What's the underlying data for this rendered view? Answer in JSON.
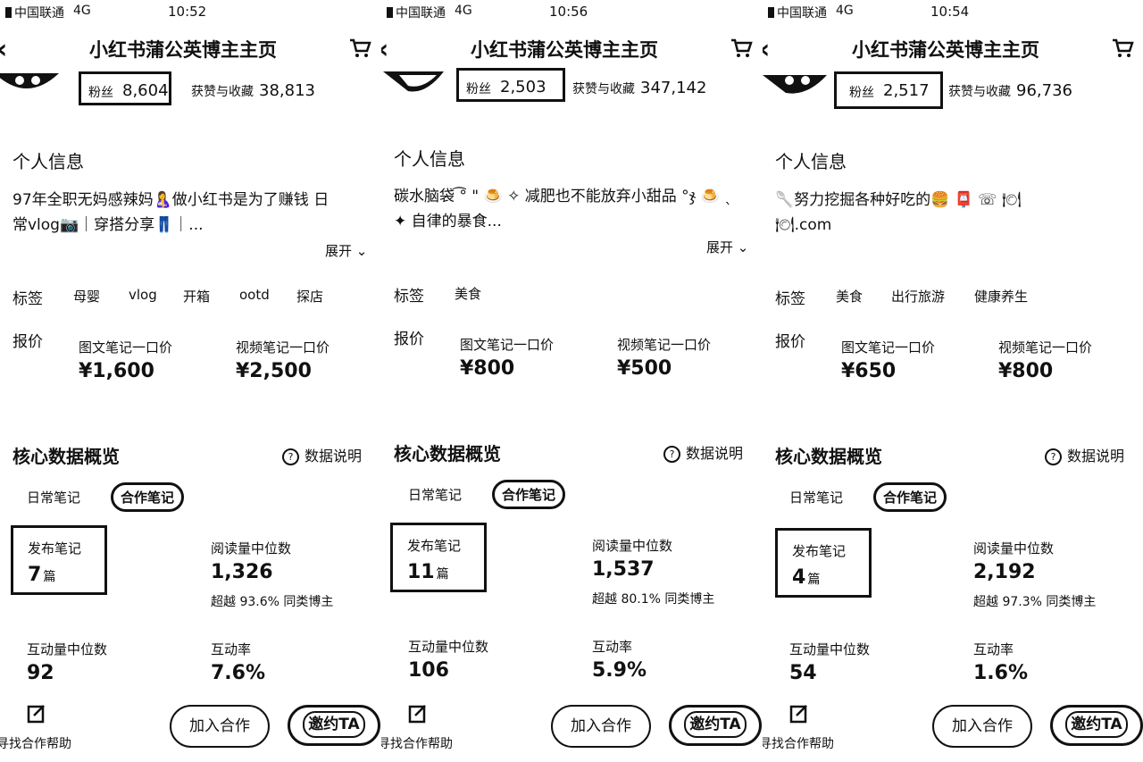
{
  "app_title": "小红书蒲公英博主主页",
  "panels": [
    {
      "status": {
        "carrier": "中国联通",
        "network": "4G",
        "time": "10:52"
      },
      "fans_label": "粉丝",
      "fans_value": "8,604",
      "likes_label": "获赞与收藏",
      "likes_value": "38,813",
      "info_title": "个人信息",
      "bio_line1": "97年全职无妈感辣妈🤱做小红书是为了赚钱 日",
      "bio_line2": "常vlog📷｜穿搭分享👖｜...",
      "expand": "展开 ⌄",
      "tags_label": "标签",
      "tags": [
        "母婴",
        "vlog",
        "开箱",
        "ootd",
        "探店"
      ],
      "price_label": "报价",
      "price_image_label": "图文笔记一口价",
      "price_image_value": "¥1,600",
      "price_video_label": "视频笔记一口价",
      "price_video_value": "¥2,500",
      "core_title": "核心数据概览",
      "help": "数据说明",
      "tab_daily": "日常笔记",
      "tab_coop": "合作笔记",
      "notes_label": "发布笔记",
      "notes_value": "7",
      "notes_unit": "篇",
      "read_label": "阅读量中位数",
      "read_value": "1,326",
      "read_beat": "超越 93.6% 同类博主",
      "interact_label": "互动量中位数",
      "interact_value": "92",
      "rate_label": "互动率",
      "rate_value": "7.6%",
      "help_fab": "寻找合作帮助",
      "join_btn": "加入合作",
      "invite_btn": "邀约TA"
    },
    {
      "status": {
        "carrier": "中国联通",
        "network": "4G",
        "time": "10:56"
      },
      "fans_label": "粉丝",
      "fans_value": "2,503",
      "likes_label": "获赞与收藏",
      "likes_value": "347,142",
      "info_title": "个人信息",
      "bio_line1": "碳水脑袋 ͡° \" 🍮 ✧ 减肥也不能放弃小甜品 °ჯ 🍮 ˎ",
      "bio_line2": "✦ 自律的暴食...",
      "expand": "展开 ⌄",
      "tags_label": "标签",
      "tags": [
        "美食"
      ],
      "price_label": "报价",
      "price_image_label": "图文笔记一口价",
      "price_image_value": "¥800",
      "price_video_label": "视频笔记一口价",
      "price_video_value": "¥500",
      "core_title": "核心数据概览",
      "help": "数据说明",
      "tab_daily": "日常笔记",
      "tab_coop": "合作笔记",
      "notes_label": "发布笔记",
      "notes_value": "11",
      "notes_unit": "篇",
      "read_label": "阅读量中位数",
      "read_value": "1,537",
      "read_beat": "超越 80.1% 同类博主",
      "interact_label": "互动量中位数",
      "interact_value": "106",
      "rate_label": "互动率",
      "rate_value": "5.9%",
      "help_fab": "寻找合作帮助",
      "join_btn": "加入合作",
      "invite_btn": "邀约TA"
    },
    {
      "status": {
        "carrier": "中国联通",
        "network": "4G",
        "time": "10:54"
      },
      "fans_label": "粉丝",
      "fans_value": "2,517",
      "likes_label": "获赞与收藏",
      "likes_value": "96,736",
      "info_title": "个人信息",
      "bio_line1": "🥄努力挖掘各种好吃的🍔 📮                  ☏ 🍽",
      "bio_line2": "🍽.com",
      "expand": "",
      "tags_label": "标签",
      "tags": [
        "美食",
        "出行旅游",
        "健康养生"
      ],
      "price_label": "报价",
      "price_image_label": "图文笔记一口价",
      "price_image_value": "¥650",
      "price_video_label": "视频笔记一口价",
      "price_video_value": "¥800",
      "core_title": "核心数据概览",
      "help": "数据说明",
      "tab_daily": "日常笔记",
      "tab_coop": "合作笔记",
      "notes_label": "发布笔记",
      "notes_value": "4",
      "notes_unit": "篇",
      "read_label": "阅读量中位数",
      "read_value": "2,192",
      "read_beat": "超越 97.3% 同类博主",
      "interact_label": "互动量中位数",
      "interact_value": "54",
      "rate_label": "互动率",
      "rate_value": "1.6%",
      "help_fab": "寻找合作帮助",
      "join_btn": "加入合作",
      "invite_btn": "邀约TA"
    }
  ]
}
